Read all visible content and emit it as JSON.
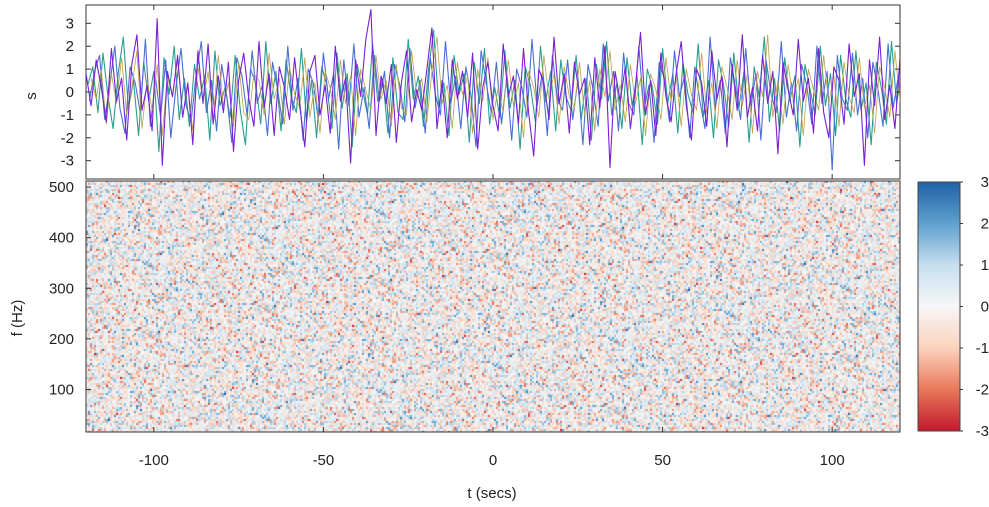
{
  "chart_data": [
    {
      "type": "line",
      "panel": "top",
      "ylabel": "s",
      "xlim": [
        -120,
        120
      ],
      "ylim": [
        -3.8,
        3.8
      ],
      "yticks": [
        -3,
        -2,
        -1,
        0,
        1,
        2,
        3
      ],
      "grid": false,
      "colors": [
        "#7a1fd6",
        "#2a9d8f",
        "#4a6fd0",
        "#b8a24a"
      ],
      "series": [
        {
          "x_start": -120,
          "x_step": 1.5,
          "values": [
            0.8,
            -0.6,
            1.4,
            0.2,
            -1.3,
            1.9,
            -0.4,
            0.6,
            -2.1,
            1.2,
            2.5,
            -0.8,
            0.3,
            -1.7,
            3.2,
            -3.2,
            0.9,
            -0.2,
            1.6,
            -1.1,
            0.4,
            -2.3,
            1.8,
            -0.5,
            2.1,
            -1.4,
            0.7,
            -0.9,
            1.3,
            -2.6,
            0.5,
            1.7,
            -0.3,
            -1.5,
            2.2,
            -0.7,
            0.8,
            -1.9,
            1.1,
            0.2,
            -1.2,
            1.5,
            -0.6,
            -2.4,
            0.9,
            1.6,
            -1.0,
            0.3,
            -1.8,
            2.0,
            -0.4,
            0.6,
            -3.1,
            1.4,
            -0.2,
            2.3,
            3.6,
            -1.9,
            0.7,
            -0.5,
            1.2,
            -2.2,
            0.4,
            1.8,
            -1.3,
            0.1,
            -0.8,
            1.0,
            2.8,
            -1.6,
            0.5,
            -2.0,
            1.4,
            -0.3,
            0.9,
            -1.1,
            1.7,
            -2.5,
            0.2,
            1.3,
            -0.6,
            -1.7,
            2.1,
            -0.2,
            0.7,
            -1.4,
            1.9,
            -0.9,
            -2.8,
            1.0,
            0.4,
            -1.2,
            2.4,
            -0.5,
            0.8,
            -1.8,
            1.3,
            -0.1,
            0.6,
            -2.3,
            1.5,
            -0.7,
            2.0,
            -3.3,
            0.9,
            -0.4,
            1.1,
            -1.6,
            0.3,
            2.6,
            -1.0,
            0.5,
            -1.9,
            1.7,
            -0.2,
            -1.3,
            0.8,
            2.2,
            -0.6,
            -2.1,
            1.0,
            0.4,
            -1.5,
            1.8,
            -0.3,
            0.7,
            -2.4,
            1.2,
            -0.8,
            2.5,
            -1.1,
            0.2,
            -1.7,
            1.6,
            -0.5,
            0.9,
            -2.7,
            1.3,
            0.1,
            -1.0,
            2.3,
            -0.4,
            0.6,
            -1.8,
            1.9,
            -0.9,
            -2.0,
            1.1,
            0.5,
            -1.4,
            2.1,
            -0.2,
            0.8,
            -3.2,
            1.4,
            -0.6,
            2.4,
            -1.2,
            0.3,
            -1.6,
            1.5,
            -0.7,
            1.0,
            -2.2,
            0.4,
            1.7,
            -0.8,
            -1.3,
            2.0,
            -0.1,
            0.7,
            -1.9,
            1.2,
            0.3
          ]
        },
        {
          "x_start": -119.5,
          "x_step": 1.5,
          "values": [
            0.3,
            1.1,
            -0.9,
            1.7,
            -0.2,
            -1.6,
            0.8,
            2.4,
            -0.7,
            0.5,
            -1.9,
            1.3,
            -0.4,
            0.9,
            -2.6,
            1.5,
            -0.1,
            2.0,
            -1.2,
            0.6,
            -1.5,
            1.2,
            -0.3,
            0.7,
            -2.1,
            1.8,
            -0.6,
            0.2,
            -1.1,
            1.6,
            -0.8,
            -2.3,
            1.0,
            0.4,
            -1.4,
            2.2,
            -0.5,
            0.9,
            -1.7,
            1.4,
            -0.2,
            -0.9,
            1.9,
            -1.3,
            0.5,
            -2.0,
            1.1,
            0.3,
            -1.6,
            1.7,
            -0.7,
            0.8,
            -2.4,
            1.2,
            0.1,
            -1.0,
            2.1,
            -0.4,
            0.6,
            -1.8,
            1.5,
            -0.9,
            -1.2,
            2.3,
            -0.3,
            0.7,
            -1.5,
            1.0,
            2.7,
            -0.6,
            0.4,
            -1.9,
            1.6,
            -0.1,
            0.8,
            -2.2,
            1.3,
            -0.5,
            1.9,
            -1.4,
            0.2,
            -1.1,
            1.8,
            -0.7,
            0.5,
            -2.5,
            1.1,
            0.3,
            -1.3,
            2.0,
            -0.4,
            0.9,
            -1.7,
            1.4,
            -0.2,
            -0.8,
            1.6,
            -1.2,
            0.6,
            -2.1,
            1.2,
            -0.3,
            2.2,
            -1.0,
            0.4,
            -1.6,
            1.5,
            -0.6,
            0.7,
            -2.3,
            1.0,
            0.2,
            -1.4,
            1.9,
            -0.5,
            0.8,
            -1.8,
            1.3,
            -0.1,
            -0.9,
            2.1,
            -1.1,
            0.5,
            -2.0,
            1.4,
            0.3,
            -1.5,
            1.7,
            -0.7,
            0.9,
            -2.2,
            1.1,
            -0.2,
            2.4,
            -1.3,
            0.6,
            -1.7,
            1.5,
            -0.4,
            0.7,
            -2.4,
            1.2,
            0.1,
            -1.0,
            2.0,
            -0.6,
            0.8,
            -1.9,
            1.6,
            -0.3,
            -1.1,
            1.8,
            -0.8,
            0.4,
            -2.3,
            1.3,
            0.2,
            -1.4,
            2.2,
            -0.5,
            0.9,
            -1.6,
            1.4,
            -0.2,
            -0.9,
            1.7,
            -1.2,
            0.5,
            -2.1,
            1.1,
            2.2
          ]
        },
        {
          "x_start": -119,
          "x_step": 1.5,
          "values": [
            -0.4,
            0.9,
            1.6,
            -1.2,
            0.3,
            2.0,
            -0.7,
            -1.8,
            1.1,
            0.4,
            -0.9,
            2.3,
            -1.5,
            0.6,
            -1.1,
            1.4,
            -2.0,
            0.2,
            1.9,
            -0.6,
            -1.3,
            0.8,
            2.2,
            -0.9,
            0.5,
            -1.7,
            1.2,
            -0.2,
            -2.2,
            1.5,
            0.7,
            -1.0,
            1.8,
            -0.5,
            0.3,
            -1.9,
            1.3,
            0.1,
            -1.4,
            2.0,
            -0.8,
            0.6,
            -2.1,
            1.0,
            0.4,
            -1.2,
            1.7,
            -0.3,
            0.8,
            -2.5,
            1.4,
            -0.6,
            2.1,
            -1.1,
            0.2,
            -1.6,
            1.6,
            -0.4,
            0.9,
            -2.0,
            1.2,
            0.3,
            -1.3,
            1.9,
            -0.7,
            0.5,
            -1.8,
            1.5,
            -0.1,
            -1.0,
            2.2,
            -0.5,
            0.7,
            -1.6,
            1.1,
            -0.2,
            -2.4,
            1.8,
            0.4,
            -0.9,
            1.3,
            -1.4,
            0.6,
            -2.1,
            1.0,
            0.2,
            -1.1,
            2.3,
            -0.6,
            0.8,
            -1.9,
            1.6,
            -0.3,
            -0.8,
            1.4,
            -1.2,
            0.5,
            -2.3,
            1.2,
            0.1,
            -1.5,
            2.1,
            -0.4,
            0.9,
            -1.7,
            1.7,
            -0.5,
            -1.0,
            2.0,
            -0.8,
            0.3,
            -2.2,
            1.3,
            0.6,
            -1.3,
            1.8,
            -0.2,
            0.7,
            -2.0,
            1.1,
            -0.4,
            -1.6,
            2.4,
            -0.7,
            0.5,
            -1.8,
            1.5,
            0.2,
            -1.2,
            1.9,
            -0.6,
            0.8,
            -2.1,
            1.4,
            -0.1,
            -0.9,
            2.2,
            -1.1,
            0.4,
            -1.7,
            1.2,
            0.3,
            -1.4,
            2.0,
            -0.5,
            0.9,
            -3.4,
            1.6,
            -0.3,
            -0.8,
            1.7,
            -1.0,
            0.6,
            -2.0,
            1.3,
            0.1,
            -1.5,
            2.1,
            -0.7,
            0.7,
            -1.9,
            1.5,
            -0.2,
            -1.1,
            1.8,
            -0.6,
            0.4,
            -2.2,
            1.0,
            0.3,
            -1.3,
            1.6,
            -0.4
          ]
        },
        {
          "x_start": -118.5,
          "x_step": 1.5,
          "values": [
            0.6,
            -0.3,
            1.0,
            -1.4,
            0.8,
            -0.5,
            1.5,
            -1.0,
            0.2,
            1.8,
            -1.6,
            0.5,
            -0.8,
            1.2,
            -1.9,
            0.7,
            -0.2,
            1.4,
            -1.1,
            0.3,
            -1.7,
            1.1,
            -0.4,
            0.9,
            -1.3,
            1.6,
            -0.6,
            0.4,
            -1.5,
            1.3,
            -0.9,
            -1.2,
            0.8,
            0.5,
            -1.0,
            1.7,
            -0.3,
            0.6,
            -1.4,
            1.1,
            -0.1,
            -0.7,
            1.5,
            -1.1,
            0.4,
            -1.8,
            0.9,
            0.2,
            -1.2,
            1.4,
            -0.5,
            0.7,
            -1.9,
            1.0,
            0.1,
            -0.8,
            1.6,
            -0.3,
            0.5,
            -1.5,
            1.2,
            -0.7,
            -1.0,
            1.8,
            -0.2,
            0.6,
            -1.3,
            0.9,
            2.4,
            -0.5,
            0.3,
            -1.6,
            1.3,
            -0.1,
            0.7,
            -1.8,
            1.0,
            -0.4,
            1.5,
            -1.2,
            0.2,
            -0.9,
            1.4,
            -0.6,
            0.4,
            -2.0,
            0.9,
            0.2,
            -1.1,
            1.6,
            -0.3,
            0.8,
            -1.4,
            1.1,
            -0.2,
            -0.7,
            1.3,
            -1.0,
            0.5,
            -1.7,
            1.0,
            -0.2,
            1.8,
            -0.8,
            0.3,
            -1.3,
            1.2,
            -0.5,
            0.6,
            -1.9,
            0.8,
            0.1,
            -1.2,
            1.5,
            -0.4,
            0.7,
            -1.5,
            1.0,
            -0.1,
            -0.8,
            1.7,
            -0.9,
            0.4,
            -1.6,
            1.1,
            0.2,
            -1.2,
            1.4,
            -0.6,
            0.8,
            -1.8,
            0.9,
            -0.2,
            2.5,
            -1.1,
            0.5,
            -1.4,
            1.2,
            -0.3,
            0.6,
            -1.9,
            1.0,
            0.1,
            -0.8,
            1.6,
            -0.5,
            0.7,
            -1.5,
            1.3,
            -0.2,
            -0.9,
            1.5,
            -0.7,
            0.3,
            -1.8,
            1.1,
            0.2,
            -1.1,
            1.8,
            -0.4,
            0.8,
            -1.3,
            1.2,
            -0.2,
            -0.8,
            1.4,
            -1.0,
            0.4,
            -1.7,
            0.9,
            2.6
          ]
        }
      ]
    },
    {
      "type": "heatmap",
      "panel": "bottom",
      "xlabel": "t (secs)",
      "ylabel": "f (Hz)",
      "xlim": [
        -120,
        120
      ],
      "ylim": [
        16,
        512
      ],
      "xticks": [
        -100,
        -50,
        0,
        50,
        100
      ],
      "yticks": [
        100,
        200,
        300,
        400,
        500
      ],
      "description_values": "random noise centered at 0",
      "colorbar": {
        "min": -3,
        "max": 3,
        "ticks": [
          -3,
          -2,
          -1,
          0,
          1,
          2,
          3
        ],
        "colormap": [
          "#c21a2e",
          "#e9785a",
          "#fbd2bd",
          "#f7f7f7",
          "#c6dff0",
          "#5fa0cd",
          "#1f62a8"
        ]
      }
    }
  ]
}
